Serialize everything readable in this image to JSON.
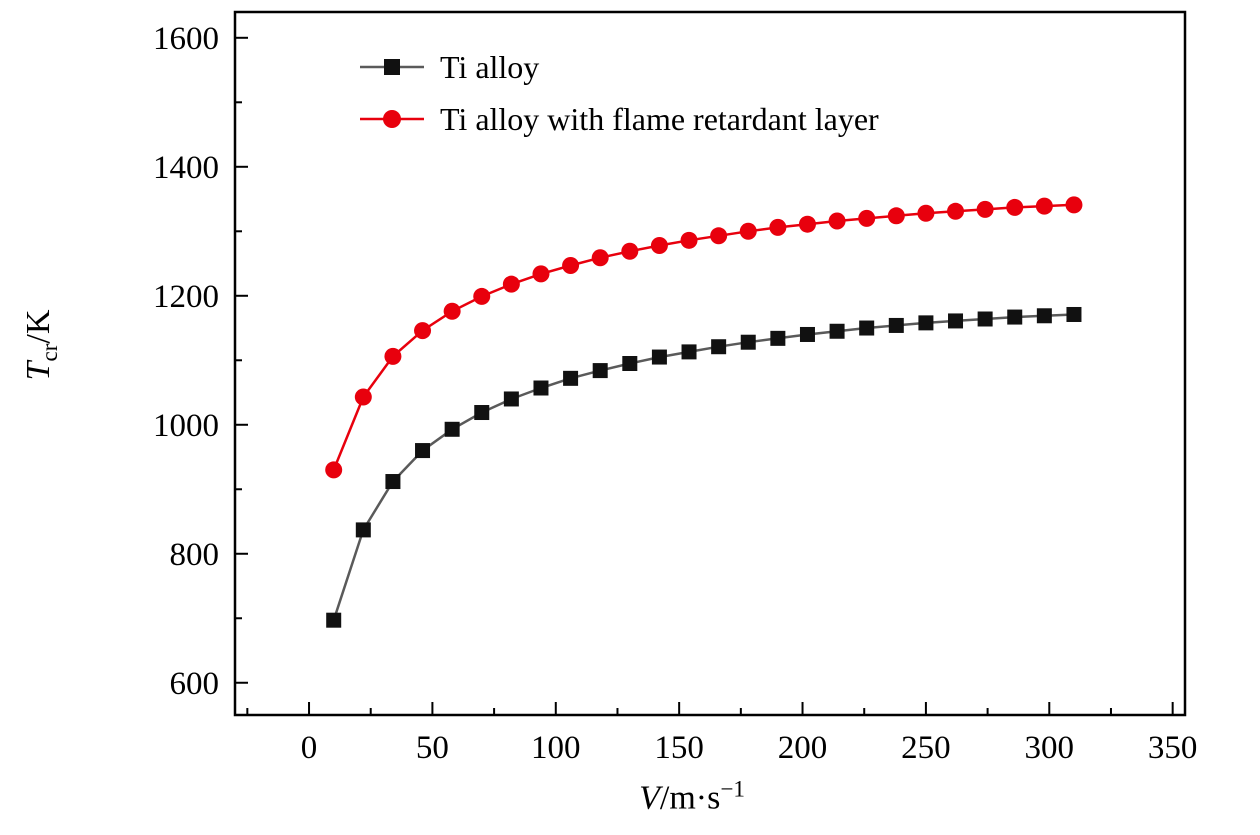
{
  "figure": {
    "background": "#ffffff",
    "frame_color": "#000000"
  },
  "y_axis": {
    "label_main": "T",
    "label_sub": "cr",
    "label_rest": "/K"
  },
  "x_axis": {
    "label_main": "V",
    "label_rest": "/m·s",
    "label_sup": "−1"
  },
  "chart_data": {
    "type": "line",
    "title": "",
    "xlabel": "V/m·s−1",
    "ylabel": "Tcr/K",
    "grid": false,
    "legend_position": "top-left-inside",
    "xlim": [
      -30,
      355
    ],
    "ylim": [
      550,
      1640
    ],
    "xticks": {
      "major": [
        0,
        50,
        100,
        150,
        200,
        250,
        300,
        350
      ],
      "minor_step": 25
    },
    "yticks": {
      "major": [
        600,
        800,
        1000,
        1200,
        1400,
        1600
      ],
      "minor_step": 100
    },
    "x": [
      10,
      22,
      34,
      46,
      58,
      70,
      82,
      94,
      106,
      118,
      130,
      142,
      154,
      166,
      178,
      190,
      202,
      214,
      226,
      238,
      250,
      262,
      274,
      286,
      298,
      310
    ],
    "series": [
      {
        "name": "Ti alloy",
        "marker": "square",
        "marker_size": 15,
        "color": "#111111",
        "line_color": "#5a5a5a",
        "values": [
          697,
          837,
          912,
          960,
          993,
          1019,
          1040,
          1057,
          1072,
          1084,
          1095,
          1105,
          1113,
          1121,
          1128,
          1134,
          1140,
          1145,
          1150,
          1154,
          1158,
          1161,
          1164,
          1167,
          1169,
          1171
        ]
      },
      {
        "name": "Ti alloy with flame retardant layer",
        "marker": "circle",
        "marker_size": 17,
        "color": "#e8000d",
        "line_color": "#e8000d",
        "values": [
          930,
          1043,
          1106,
          1146,
          1176,
          1199,
          1218,
          1234,
          1247,
          1259,
          1269,
          1278,
          1286,
          1293,
          1300,
          1306,
          1311,
          1316,
          1320,
          1324,
          1328,
          1331,
          1334,
          1337,
          1339,
          1341
        ]
      }
    ]
  }
}
